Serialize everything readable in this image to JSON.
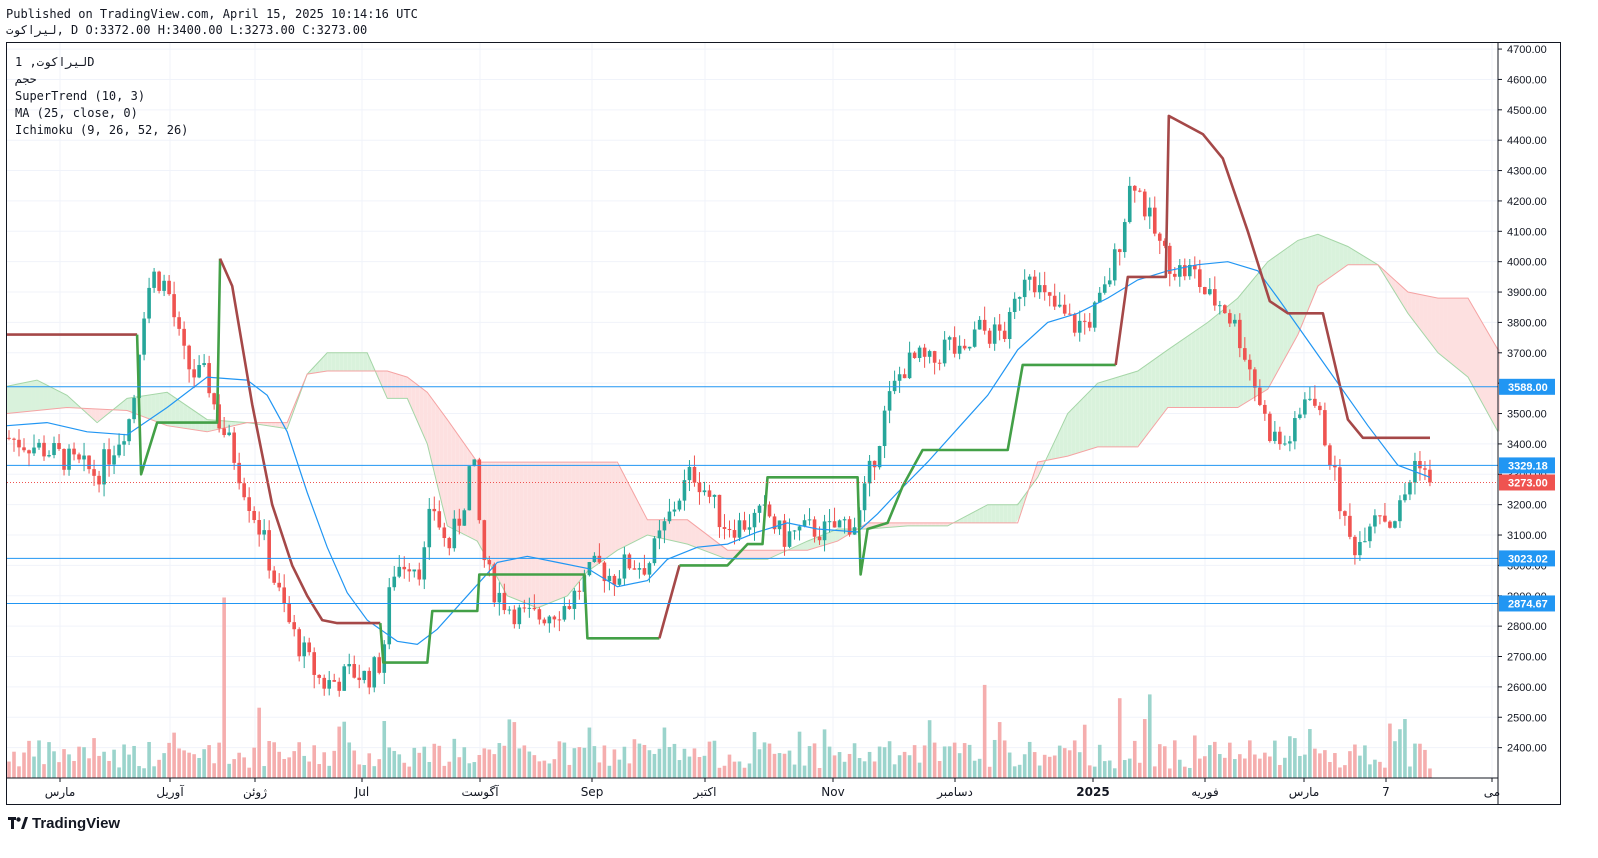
{
  "header": {
    "published": "Published on TradingView.com, April 15, 2025 10:14:16 UTC",
    "ohlc": "ليراكوت, D O:3372.00 H:3400.00 L:3273.00 C:3273.00"
  },
  "legend": {
    "symbol": "ليراكوت, 1D",
    "volume": "حجم",
    "supertrend": "SuperTrend (10, 3)",
    "ma": "MA (25, close, 0)",
    "ichimoku": "Ichimoku (9, 26, 52, 26)"
  },
  "brand": "TradingView",
  "colors": {
    "up": "#26a69a",
    "down": "#ef5350",
    "supertrend_up": "#43a047",
    "supertrend_down": "#a54848",
    "ma": "#2196f3",
    "hline": "#2196f3",
    "cloud_up": "#d9f2dc",
    "cloud_down": "#fde0e0"
  },
  "chart_data": {
    "type": "candlestick",
    "y_axis": {
      "min": 2300,
      "max": 4720,
      "ticks": [
        2400,
        2500,
        2600,
        2700,
        2800,
        2900,
        3000,
        3100,
        3200,
        3300,
        3400,
        3500,
        3600,
        3700,
        3800,
        3900,
        4000,
        4100,
        4200,
        4300,
        4400,
        4500,
        4600,
        4700
      ]
    },
    "x_labels": [
      "مارس",
      "آوریل",
      "ژوئن",
      "Jul",
      "آگوست",
      "Sep",
      "اکتبر",
      "Nov",
      "دسامبر",
      "2025",
      "فوریه",
      "مارس",
      "7",
      "می"
    ],
    "horizontal_lines": [
      {
        "value": 3588.0,
        "label": "3588.00"
      },
      {
        "value": 3329.18,
        "label": "3329.18"
      },
      {
        "value": 3023.02,
        "label": "3023.02"
      },
      {
        "value": 2874.67,
        "label": "2874.67"
      }
    ],
    "last_price": {
      "value": 3273.0,
      "label": "3273.00"
    },
    "supertrend": [
      [
        0,
        3760
      ],
      [
        130,
        3760
      ],
      [
        134,
        3300
      ],
      [
        150,
        3470
      ],
      [
        210,
        3470
      ],
      [
        213,
        4010
      ],
      [
        225,
        3920
      ],
      [
        245,
        3530
      ],
      [
        265,
        3200
      ],
      [
        285,
        3000
      ],
      [
        300,
        2900
      ],
      [
        315,
        2820
      ],
      [
        330,
        2810
      ],
      [
        373,
        2810
      ],
      [
        376,
        2680
      ],
      [
        420,
        2680
      ],
      [
        425,
        2850
      ],
      [
        470,
        2850
      ],
      [
        472,
        2970
      ],
      [
        577,
        2970
      ],
      [
        580,
        2760
      ],
      [
        652,
        2760
      ],
      [
        672,
        3000
      ],
      [
        720,
        3000
      ],
      [
        740,
        3070
      ],
      [
        755,
        3070
      ],
      [
        760,
        3290
      ],
      [
        850,
        3290
      ],
      [
        853,
        2970
      ],
      [
        860,
        3120
      ],
      [
        880,
        3140
      ],
      [
        895,
        3260
      ],
      [
        915,
        3380
      ],
      [
        1000,
        3380
      ],
      [
        1015,
        3660
      ],
      [
        1108,
        3660
      ],
      [
        1120,
        3950
      ],
      [
        1158,
        3950
      ],
      [
        1161,
        4480
      ],
      [
        1195,
        4420
      ],
      [
        1215,
        4340
      ],
      [
        1240,
        4100
      ],
      [
        1262,
        3870
      ],
      [
        1280,
        3830
      ],
      [
        1315,
        3830
      ],
      [
        1340,
        3480
      ],
      [
        1355,
        3420
      ],
      [
        1422,
        3420
      ]
    ],
    "supertrend_split": [
      [
        0,
        13,
        "down"
      ],
      [
        13,
        21,
        "down"
      ],
      [
        14,
        23,
        "up"
      ],
      [
        24,
        37,
        "up"
      ],
      [
        37,
        48,
        "down"
      ]
    ],
    "ma": [
      [
        0,
        3460
      ],
      [
        40,
        3470
      ],
      [
        80,
        3440
      ],
      [
        120,
        3430
      ],
      [
        160,
        3520
      ],
      [
        200,
        3620
      ],
      [
        240,
        3610
      ],
      [
        260,
        3560
      ],
      [
        280,
        3440
      ],
      [
        300,
        3240
      ],
      [
        320,
        3060
      ],
      [
        340,
        2910
      ],
      [
        360,
        2820
      ],
      [
        390,
        2750
      ],
      [
        410,
        2740
      ],
      [
        430,
        2790
      ],
      [
        460,
        2900
      ],
      [
        490,
        3010
      ],
      [
        520,
        3030
      ],
      [
        550,
        3010
      ],
      [
        580,
        2990
      ],
      [
        610,
        2930
      ],
      [
        640,
        2950
      ],
      [
        660,
        3020
      ],
      [
        690,
        3060
      ],
      [
        720,
        3070
      ],
      [
        750,
        3110
      ],
      [
        780,
        3140
      ],
      [
        810,
        3120
      ],
      [
        850,
        3110
      ],
      [
        870,
        3170
      ],
      [
        890,
        3240
      ],
      [
        920,
        3340
      ],
      [
        950,
        3450
      ],
      [
        980,
        3560
      ],
      [
        1010,
        3710
      ],
      [
        1040,
        3800
      ],
      [
        1070,
        3830
      ],
      [
        1100,
        3880
      ],
      [
        1130,
        3940
      ],
      [
        1160,
        3970
      ],
      [
        1190,
        3990
      ],
      [
        1220,
        4000
      ],
      [
        1250,
        3970
      ],
      [
        1270,
        3880
      ],
      [
        1300,
        3740
      ],
      [
        1330,
        3600
      ],
      [
        1360,
        3460
      ],
      [
        1390,
        3330
      ],
      [
        1422,
        3290
      ]
    ],
    "cloud_a": [
      [
        0,
        3590
      ],
      [
        30,
        3610
      ],
      [
        60,
        3560
      ],
      [
        90,
        3470
      ],
      [
        120,
        3550
      ],
      [
        160,
        3570
      ],
      [
        200,
        3480
      ],
      [
        240,
        3470
      ],
      [
        280,
        3450
      ],
      [
        300,
        3630
      ],
      [
        320,
        3700
      ],
      [
        360,
        3700
      ],
      [
        380,
        3550
      ],
      [
        400,
        3550
      ],
      [
        420,
        3400
      ],
      [
        440,
        3130
      ],
      [
        470,
        3080
      ],
      [
        500,
        2900
      ],
      [
        530,
        2860
      ],
      [
        560,
        2900
      ],
      [
        580,
        2980
      ],
      [
        610,
        3050
      ],
      [
        640,
        3100
      ],
      [
        680,
        3070
      ],
      [
        720,
        3020
      ],
      [
        760,
        3020
      ],
      [
        800,
        3080
      ],
      [
        830,
        3120
      ],
      [
        860,
        3120
      ],
      [
        900,
        3130
      ],
      [
        940,
        3130
      ],
      [
        980,
        3200
      ],
      [
        1010,
        3200
      ],
      [
        1030,
        3290
      ],
      [
        1060,
        3500
      ],
      [
        1090,
        3600
      ],
      [
        1130,
        3640
      ],
      [
        1160,
        3710
      ],
      [
        1200,
        3800
      ],
      [
        1230,
        3880
      ],
      [
        1260,
        4000
      ],
      [
        1290,
        4070
      ],
      [
        1310,
        4090
      ],
      [
        1340,
        4050
      ],
      [
        1370,
        3990
      ],
      [
        1400,
        3830
      ],
      [
        1430,
        3700
      ],
      [
        1460,
        3620
      ],
      [
        1490,
        3440
      ]
    ],
    "cloud_b": [
      [
        0,
        3500
      ],
      [
        60,
        3520
      ],
      [
        120,
        3510
      ],
      [
        160,
        3460
      ],
      [
        200,
        3440
      ],
      [
        240,
        3470
      ],
      [
        280,
        3470
      ],
      [
        300,
        3630
      ],
      [
        320,
        3640
      ],
      [
        360,
        3640
      ],
      [
        380,
        3640
      ],
      [
        400,
        3620
      ],
      [
        420,
        3570
      ],
      [
        440,
        3480
      ],
      [
        470,
        3340
      ],
      [
        500,
        3340
      ],
      [
        530,
        3340
      ],
      [
        560,
        3340
      ],
      [
        610,
        3340
      ],
      [
        640,
        3150
      ],
      [
        680,
        3150
      ],
      [
        720,
        3050
      ],
      [
        760,
        3050
      ],
      [
        800,
        3050
      ],
      [
        830,
        3080
      ],
      [
        860,
        3140
      ],
      [
        900,
        3140
      ],
      [
        940,
        3140
      ],
      [
        980,
        3140
      ],
      [
        1010,
        3140
      ],
      [
        1030,
        3340
      ],
      [
        1060,
        3360
      ],
      [
        1090,
        3390
      ],
      [
        1130,
        3390
      ],
      [
        1160,
        3520
      ],
      [
        1200,
        3520
      ],
      [
        1230,
        3520
      ],
      [
        1260,
        3580
      ],
      [
        1290,
        3760
      ],
      [
        1310,
        3920
      ],
      [
        1340,
        3990
      ],
      [
        1370,
        3990
      ],
      [
        1400,
        3900
      ],
      [
        1430,
        3880
      ],
      [
        1460,
        3880
      ],
      [
        1490,
        3710
      ]
    ],
    "candle_zones": [
      [
        0,
        3420
      ],
      [
        40,
        3380
      ],
      [
        70,
        3330
      ],
      [
        90,
        3300
      ],
      [
        110,
        3410
      ],
      [
        125,
        3500
      ],
      [
        135,
        3820
      ],
      [
        145,
        3960
      ],
      [
        160,
        3920
      ],
      [
        175,
        3700
      ],
      [
        185,
        3630
      ],
      [
        200,
        3620
      ],
      [
        210,
        3490
      ],
      [
        225,
        3380
      ],
      [
        240,
        3230
      ],
      [
        255,
        3100
      ],
      [
        270,
        2920
      ],
      [
        285,
        2780
      ],
      [
        300,
        2690
      ],
      [
        315,
        2610
      ],
      [
        330,
        2620
      ],
      [
        345,
        2650
      ],
      [
        360,
        2630
      ],
      [
        375,
        2690
      ],
      [
        385,
        2980
      ],
      [
        400,
        3020
      ],
      [
        415,
        2990
      ],
      [
        425,
        3210
      ],
      [
        440,
        3050
      ],
      [
        455,
        3180
      ],
      [
        465,
        3370
      ],
      [
        475,
        3040
      ],
      [
        485,
        2930
      ],
      [
        500,
        2870
      ],
      [
        515,
        2830
      ],
      [
        530,
        2830
      ],
      [
        545,
        2850
      ],
      [
        560,
        2870
      ],
      [
        575,
        2940
      ],
      [
        590,
        3000
      ],
      [
        605,
        2960
      ],
      [
        620,
        3010
      ],
      [
        640,
        3000
      ],
      [
        655,
        3110
      ],
      [
        670,
        3220
      ],
      [
        685,
        3310
      ],
      [
        700,
        3240
      ],
      [
        715,
        3140
      ],
      [
        730,
        3130
      ],
      [
        745,
        3150
      ],
      [
        760,
        3170
      ],
      [
        775,
        3090
      ],
      [
        790,
        3110
      ],
      [
        805,
        3120
      ],
      [
        820,
        3110
      ],
      [
        835,
        3140
      ],
      [
        850,
        3140
      ],
      [
        865,
        3340
      ],
      [
        880,
        3530
      ],
      [
        895,
        3650
      ],
      [
        910,
        3680
      ],
      [
        925,
        3660
      ],
      [
        940,
        3740
      ],
      [
        955,
        3670
      ],
      [
        970,
        3780
      ],
      [
        985,
        3760
      ],
      [
        1000,
        3770
      ],
      [
        1010,
        3890
      ],
      [
        1020,
        4000
      ],
      [
        1035,
        3880
      ],
      [
        1050,
        3840
      ],
      [
        1065,
        3790
      ],
      [
        1080,
        3800
      ],
      [
        1095,
        3880
      ],
      [
        1110,
        4040
      ],
      [
        1125,
        4290
      ],
      [
        1140,
        4150
      ],
      [
        1155,
        4030
      ],
      [
        1170,
        3970
      ],
      [
        1185,
        3970
      ],
      [
        1200,
        3880
      ],
      [
        1215,
        3860
      ],
      [
        1230,
        3770
      ],
      [
        1245,
        3620
      ],
      [
        1260,
        3450
      ],
      [
        1275,
        3390
      ],
      [
        1290,
        3460
      ],
      [
        1300,
        3600
      ],
      [
        1310,
        3500
      ],
      [
        1320,
        3390
      ],
      [
        1330,
        3240
      ],
      [
        1340,
        3090
      ],
      [
        1350,
        3060
      ],
      [
        1360,
        3150
      ],
      [
        1370,
        3200
      ],
      [
        1380,
        3140
      ],
      [
        1390,
        3170
      ],
      [
        1400,
        3260
      ],
      [
        1410,
        3370
      ],
      [
        1422,
        3273
      ]
    ],
    "volume_scale": {
      "min": 0,
      "max": 600
    },
    "last_candle": {
      "open": 3372.0,
      "high": 3400.0,
      "low": 3273.0,
      "close": 3273.0
    }
  }
}
